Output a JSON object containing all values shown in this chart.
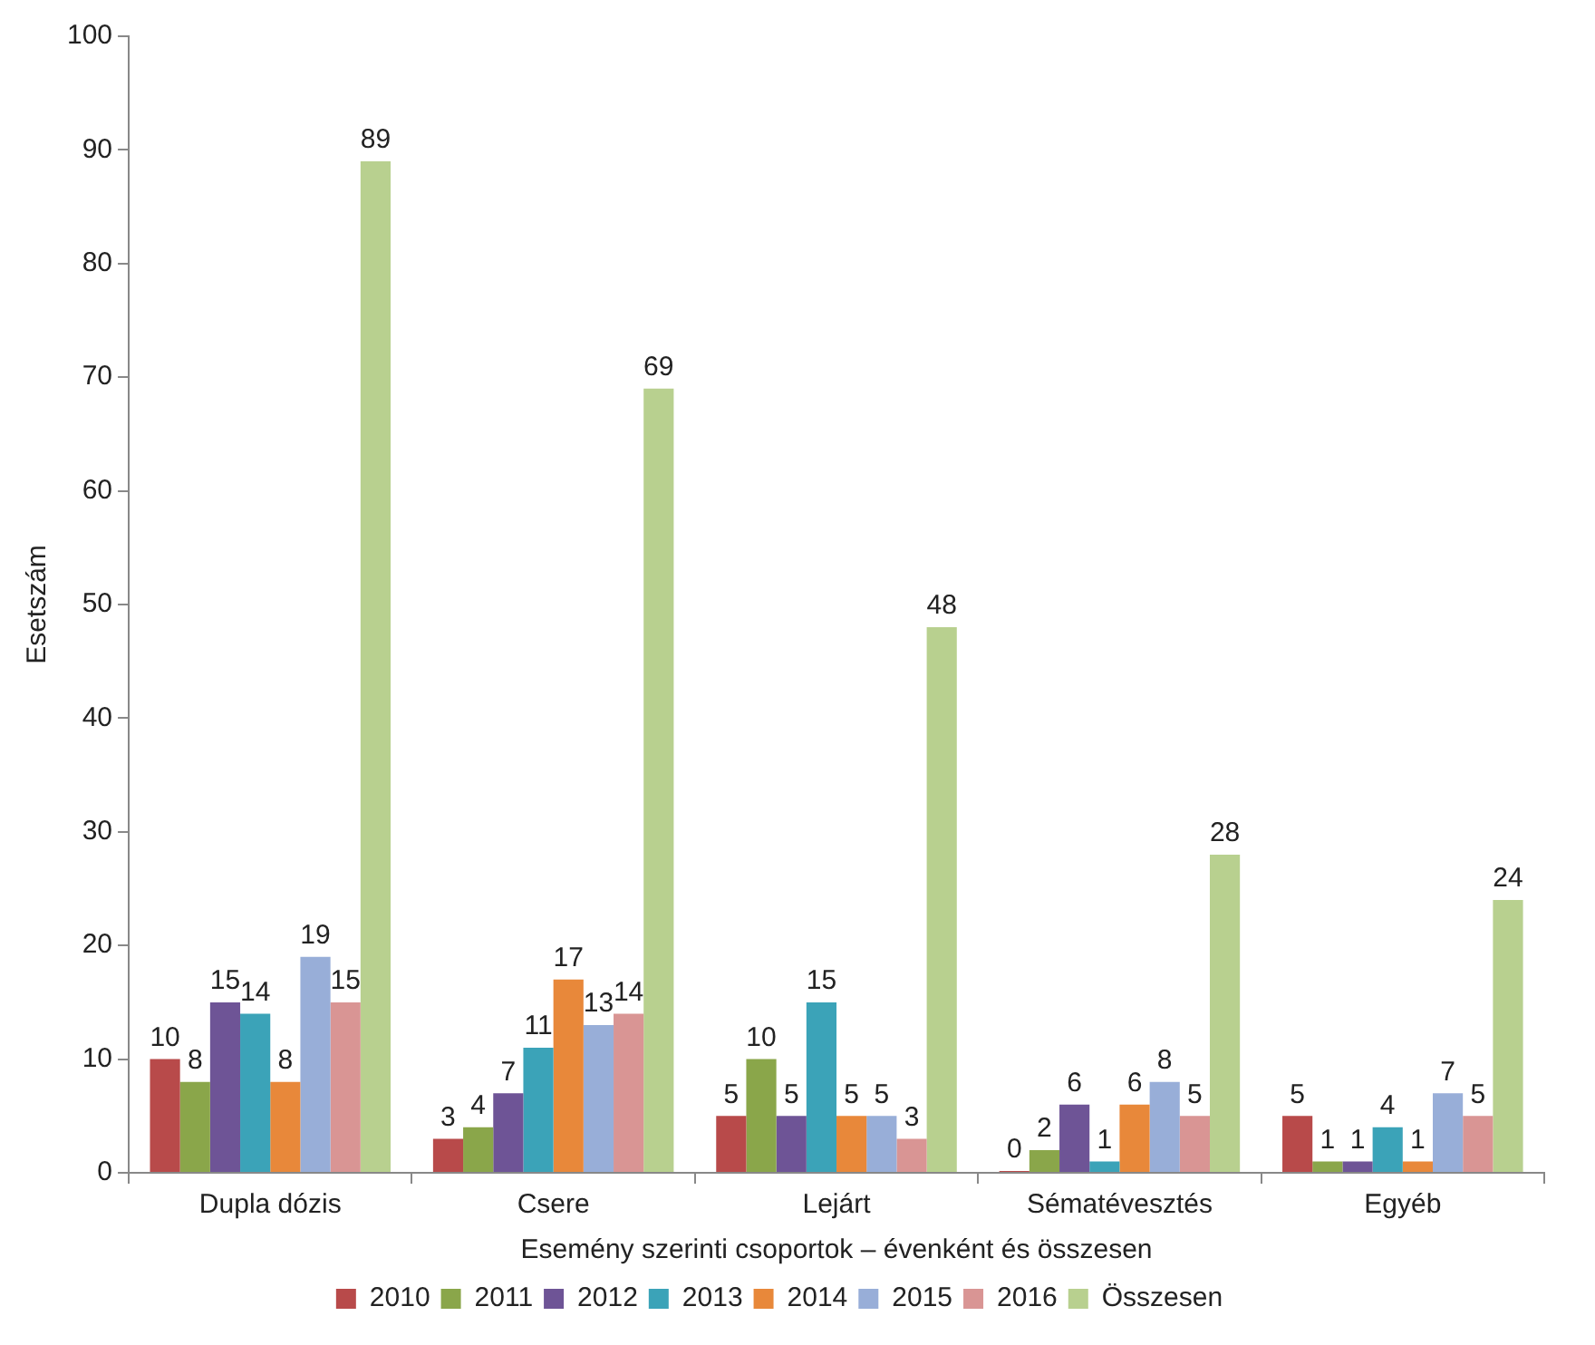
{
  "chart_data": {
    "type": "bar",
    "xlabel": "Esemény szerinti csoportok – évenként és összesen",
    "ylabel": "Esetszám",
    "categories": [
      "Dupla dózis",
      "Csere",
      "Lejárt",
      "Sématévesztés",
      "Egyéb"
    ],
    "series": [
      {
        "name": "2010",
        "color": "#b84a4a",
        "values": [
          10,
          3,
          5,
          0,
          5
        ]
      },
      {
        "name": "2011",
        "color": "#8aa64a",
        "values": [
          8,
          4,
          10,
          2,
          1
        ]
      },
      {
        "name": "2012",
        "color": "#6e5496",
        "values": [
          15,
          7,
          5,
          6,
          1
        ]
      },
      {
        "name": "2013",
        "color": "#3ba3b8",
        "values": [
          14,
          11,
          15,
          1,
          4
        ]
      },
      {
        "name": "2014",
        "color": "#e8883a",
        "values": [
          8,
          17,
          5,
          6,
          1
        ]
      },
      {
        "name": "2015",
        "color": "#98aed8",
        "values": [
          19,
          13,
          5,
          8,
          7
        ]
      },
      {
        "name": "2016",
        "color": "#d99594",
        "values": [
          15,
          14,
          3,
          5,
          5
        ]
      },
      {
        "name": "Összesen",
        "color": "#b8d08f",
        "values": [
          89,
          69,
          48,
          28,
          24
        ]
      }
    ],
    "ylim": [
      0,
      100
    ],
    "yticks": [
      0,
      10,
      20,
      30,
      40,
      50,
      60,
      70,
      80,
      90,
      100
    ],
    "grid": false,
    "legend": "bottom",
    "data_labels": true
  }
}
